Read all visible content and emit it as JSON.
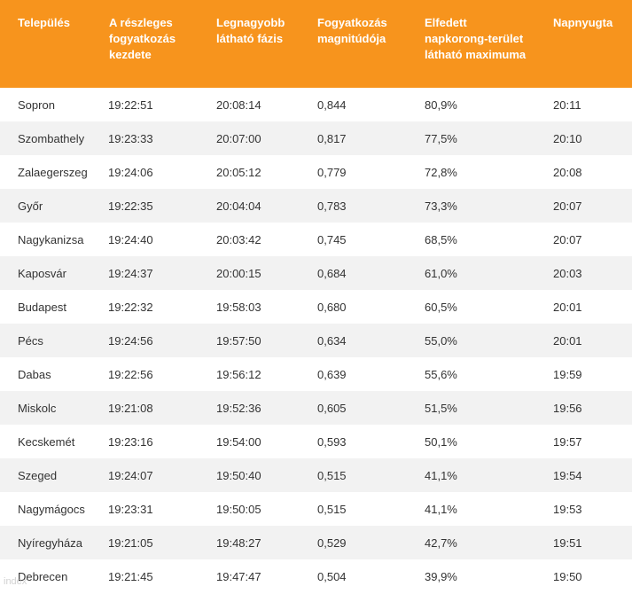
{
  "table": {
    "headers": [
      "Település",
      "A részleges fogyatkozás kezdete",
      "Legnagyobb látható fázis",
      "Fogyatkozás magnitúdója",
      "Elfedett napkorong-terület látható maximuma",
      "Napnyugta"
    ],
    "rows": [
      [
        "Sopron",
        "19:22:51",
        "20:08:14",
        "0,844",
        "80,9%",
        "20:11"
      ],
      [
        "Szombathely",
        "19:23:33",
        "20:07:00",
        "0,817",
        "77,5%",
        "20:10"
      ],
      [
        "Zalaegerszeg",
        "19:24:06",
        "20:05:12",
        "0,779",
        "72,8%",
        "20:08"
      ],
      [
        "Győr",
        "19:22:35",
        "20:04:04",
        "0,783",
        "73,3%",
        "20:07"
      ],
      [
        "Nagykanizsa",
        "19:24:40",
        "20:03:42",
        "0,745",
        "68,5%",
        "20:07"
      ],
      [
        "Kaposvár",
        "19:24:37",
        "20:00:15",
        "0,684",
        "61,0%",
        "20:03"
      ],
      [
        "Budapest",
        "19:22:32",
        "19:58:03",
        "0,680",
        "60,5%",
        "20:01"
      ],
      [
        "Pécs",
        "19:24:56",
        "19:57:50",
        "0,634",
        "55,0%",
        "20:01"
      ],
      [
        "Dabas",
        "19:22:56",
        "19:56:12",
        "0,639",
        "55,6%",
        "19:59"
      ],
      [
        "Miskolc",
        "19:21:08",
        "19:52:36",
        "0,605",
        "51,5%",
        "19:56"
      ],
      [
        "Kecskemét",
        "19:23:16",
        "19:54:00",
        "0,593",
        "50,1%",
        "19:57"
      ],
      [
        "Szeged",
        "19:24:07",
        "19:50:40",
        "0,515",
        "41,1%",
        "19:54"
      ],
      [
        "Nagymágocs",
        "19:23:31",
        "19:50:05",
        "0,515",
        "41,1%",
        "19:53"
      ],
      [
        "Nyíregyháza",
        "19:21:05",
        "19:48:27",
        "0,529",
        "42,7%",
        "19:51"
      ],
      [
        "Debrecen",
        "19:21:45",
        "19:47:47",
        "0,504",
        "39,9%",
        "19:50"
      ]
    ]
  },
  "watermark": "index",
  "colors": {
    "header_bg": "#f7941d",
    "header_text": "#ffffff",
    "row_alt_bg": "#f2f2f2",
    "cell_text": "#333333"
  }
}
